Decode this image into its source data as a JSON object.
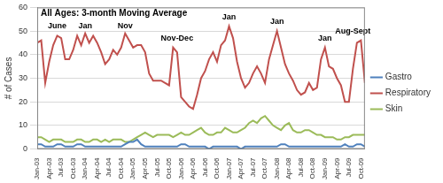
{
  "chart_data": {
    "type": "line",
    "title": "All Ages: 3-month Moving Average",
    "y_label": "# of Cases",
    "categories": [
      "Jan-03",
      null,
      null,
      "Apr-03",
      null,
      null,
      "Jul-03",
      null,
      null,
      "Oct-03",
      null,
      null,
      "Jan-04",
      null,
      null,
      "Apr-04",
      null,
      null,
      "Jul-04",
      null,
      null,
      "Oct-04",
      null,
      null,
      "Jan-05",
      null,
      null,
      "Apr-05",
      null,
      null,
      "Jul-05",
      null,
      null,
      "Oct-05",
      null,
      null,
      "Jan-06",
      null,
      null,
      "Apr-06",
      null,
      null,
      "Jul-06",
      null,
      null,
      "Oct-06",
      null,
      null,
      "Jan-07",
      null,
      null,
      "Apr-07",
      null,
      null,
      "Jul-07",
      null,
      null,
      "Oct-07",
      null,
      null,
      "Jan-08",
      null,
      null,
      "Apr-08",
      null,
      null,
      "Jul-08",
      null,
      null,
      "Oct-08",
      null,
      null,
      "Jan-09",
      null,
      null,
      "Apr-09",
      null,
      null,
      "Jul-09",
      null,
      null,
      "Oct-09",
      null
    ],
    "series": [
      {
        "name": "Gastro",
        "color": "#4f81bd",
        "marker": "none",
        "line_style": "solid",
        "values": [
          2,
          2,
          1,
          1,
          1,
          2,
          2,
          1,
          1,
          1,
          2,
          2,
          1,
          1,
          1,
          1,
          1,
          1,
          1,
          1,
          1,
          1,
          2,
          3,
          3,
          4,
          2,
          1,
          1,
          1,
          1,
          1,
          1,
          1,
          1,
          1,
          2,
          2,
          1,
          1,
          1,
          1,
          1,
          0,
          1,
          1,
          1,
          1,
          1,
          1,
          1,
          0,
          1,
          1,
          1,
          1,
          1,
          1,
          1,
          1,
          1,
          2,
          2,
          1,
          1,
          1,
          1,
          1,
          1,
          1,
          1,
          1,
          1,
          1,
          1,
          1,
          1,
          2,
          1,
          1,
          2,
          2,
          1
        ]
      },
      {
        "name": "Respiratory",
        "color": "#c0504d",
        "marker": "none",
        "line_style": "solid",
        "values": [
          45,
          46,
          28,
          37,
          44,
          48,
          47,
          38,
          38,
          42,
          48,
          44,
          49,
          45,
          48,
          45,
          41,
          36,
          38,
          42,
          40,
          43,
          49,
          46,
          43,
          44,
          44,
          41,
          32,
          29,
          29,
          29,
          28,
          27,
          43,
          41,
          22,
          20,
          18,
          17,
          23,
          30,
          33,
          38,
          41,
          37,
          44,
          46,
          52,
          47,
          37,
          30,
          26,
          28,
          32,
          35,
          32,
          28,
          38,
          44,
          50,
          43,
          36,
          32,
          29,
          25,
          23,
          24,
          28,
          25,
          26,
          38,
          43,
          35,
          34,
          30,
          27,
          20,
          20,
          34,
          45,
          46,
          28
        ]
      },
      {
        "name": "Skin",
        "color": "#9bbb59",
        "marker": "none",
        "line_style": "solid",
        "values": [
          5,
          5,
          4,
          3,
          4,
          4,
          4,
          3,
          3,
          3,
          4,
          4,
          3,
          3,
          4,
          4,
          3,
          4,
          3,
          4,
          4,
          4,
          3,
          3,
          4,
          5,
          6,
          7,
          6,
          5,
          6,
          6,
          6,
          6,
          5,
          6,
          7,
          6,
          6,
          7,
          8,
          9,
          7,
          6,
          6,
          7,
          7,
          9,
          8,
          7,
          7,
          8,
          9,
          11,
          12,
          11,
          13,
          14,
          12,
          10,
          9,
          8,
          10,
          11,
          8,
          7,
          7,
          8,
          8,
          7,
          6,
          6,
          5,
          5,
          5,
          4,
          4,
          5,
          5,
          6,
          6,
          6,
          6
        ]
      }
    ],
    "annotations": [
      {
        "text": "June",
        "x": 5,
        "y": 52
      },
      {
        "text": "Jan",
        "x": 12,
        "y": 52
      },
      {
        "text": "Nov",
        "x": 22,
        "y": 52
      },
      {
        "text": "Nov-Dec",
        "x": 35,
        "y": 47
      },
      {
        "text": "Jan",
        "x": 48,
        "y": 56
      },
      {
        "text": "Jan",
        "x": 60,
        "y": 54
      },
      {
        "text": "Jan",
        "x": 72,
        "y": 47
      },
      {
        "text": "Aug-Sept",
        "x": 79,
        "y": 50
      }
    ],
    "ylim": [
      0,
      60
    ],
    "yticks": [
      0,
      10,
      20,
      30,
      40,
      50,
      60
    ],
    "grid": true,
    "legend": "right"
  }
}
